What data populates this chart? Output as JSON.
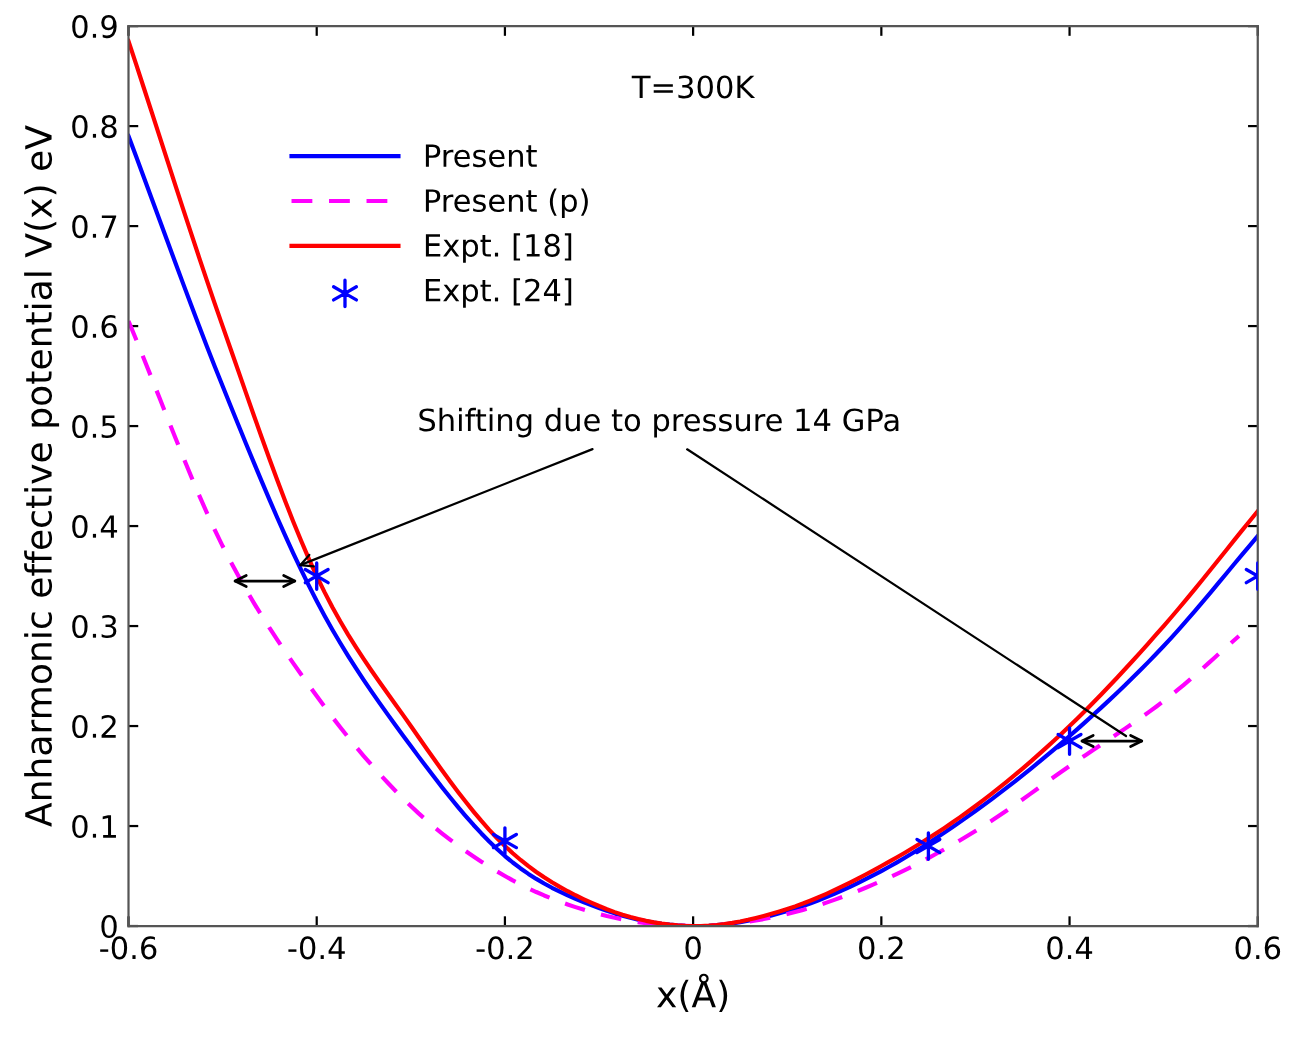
{
  "chart_data": {
    "type": "line",
    "xlabel": "x(Å)",
    "ylabel": "Anharmonic effective potential V(x) eV",
    "xlim": [
      -0.6,
      0.6
    ],
    "xticks": [
      -0.6,
      -0.4,
      -0.2,
      0,
      0.2,
      0.4,
      0.6
    ],
    "ylim": [
      0,
      0.9
    ],
    "yticks": [
      0,
      0.1,
      0.2,
      0.3,
      0.4,
      0.5,
      0.6,
      0.7,
      0.8,
      0.9
    ],
    "grid": false,
    "legend": "top left",
    "annotations": [
      "T=300K",
      {
        "text": "Shifting due to pressure 14 GPa",
        "x": -0.42,
        "y": 0.36
      }
    ],
    "series": [
      {
        "name": "Present",
        "color": "#0000ff",
        "line_style": "solid",
        "marker": "none",
        "x": [
          -0.6,
          -0.5,
          -0.4,
          -0.3,
          -0.2,
          -0.1,
          0,
          0.1,
          0.2,
          0.3,
          0.4,
          0.5,
          0.6
        ],
        "values": [
          0.79,
          0.54,
          0.325,
          0.18,
          0.07,
          0.018,
          0,
          0.015,
          0.055,
          0.115,
          0.19,
          0.28,
          0.39
        ]
      },
      {
        "name": "Present (p)",
        "color": "#ff00ff",
        "line_style": "dashed",
        "marker": "none",
        "x": [
          -0.6,
          -0.5,
          -0.4,
          -0.3,
          -0.2,
          -0.1,
          0,
          0.1,
          0.2,
          0.3,
          0.4,
          0.5,
          0.58
        ],
        "values": [
          0.605,
          0.38,
          0.23,
          0.12,
          0.05,
          0.012,
          0,
          0.012,
          0.045,
          0.095,
          0.16,
          0.225,
          0.29
        ]
      },
      {
        "name": "Expt. [18]",
        "color": "#ff0000",
        "line_style": "solid",
        "marker": "none",
        "x": [
          -0.6,
          -0.5,
          -0.4,
          -0.3,
          -0.2,
          -0.1,
          0,
          0.1,
          0.2,
          0.3,
          0.4,
          0.5,
          0.6
        ],
        "values": [
          0.885,
          0.6,
          0.35,
          0.2,
          0.08,
          0.02,
          0,
          0.017,
          0.06,
          0.12,
          0.2,
          0.3,
          0.415
        ]
      },
      {
        "name": "Expt. [24]",
        "type": "scatter",
        "color": "#0000ff",
        "marker": "cross",
        "x": [
          -0.4,
          -0.2,
          0.25,
          0.4,
          0.6
        ],
        "values": [
          0.35,
          0.085,
          0.08,
          0.185,
          0.35
        ]
      }
    ]
  }
}
